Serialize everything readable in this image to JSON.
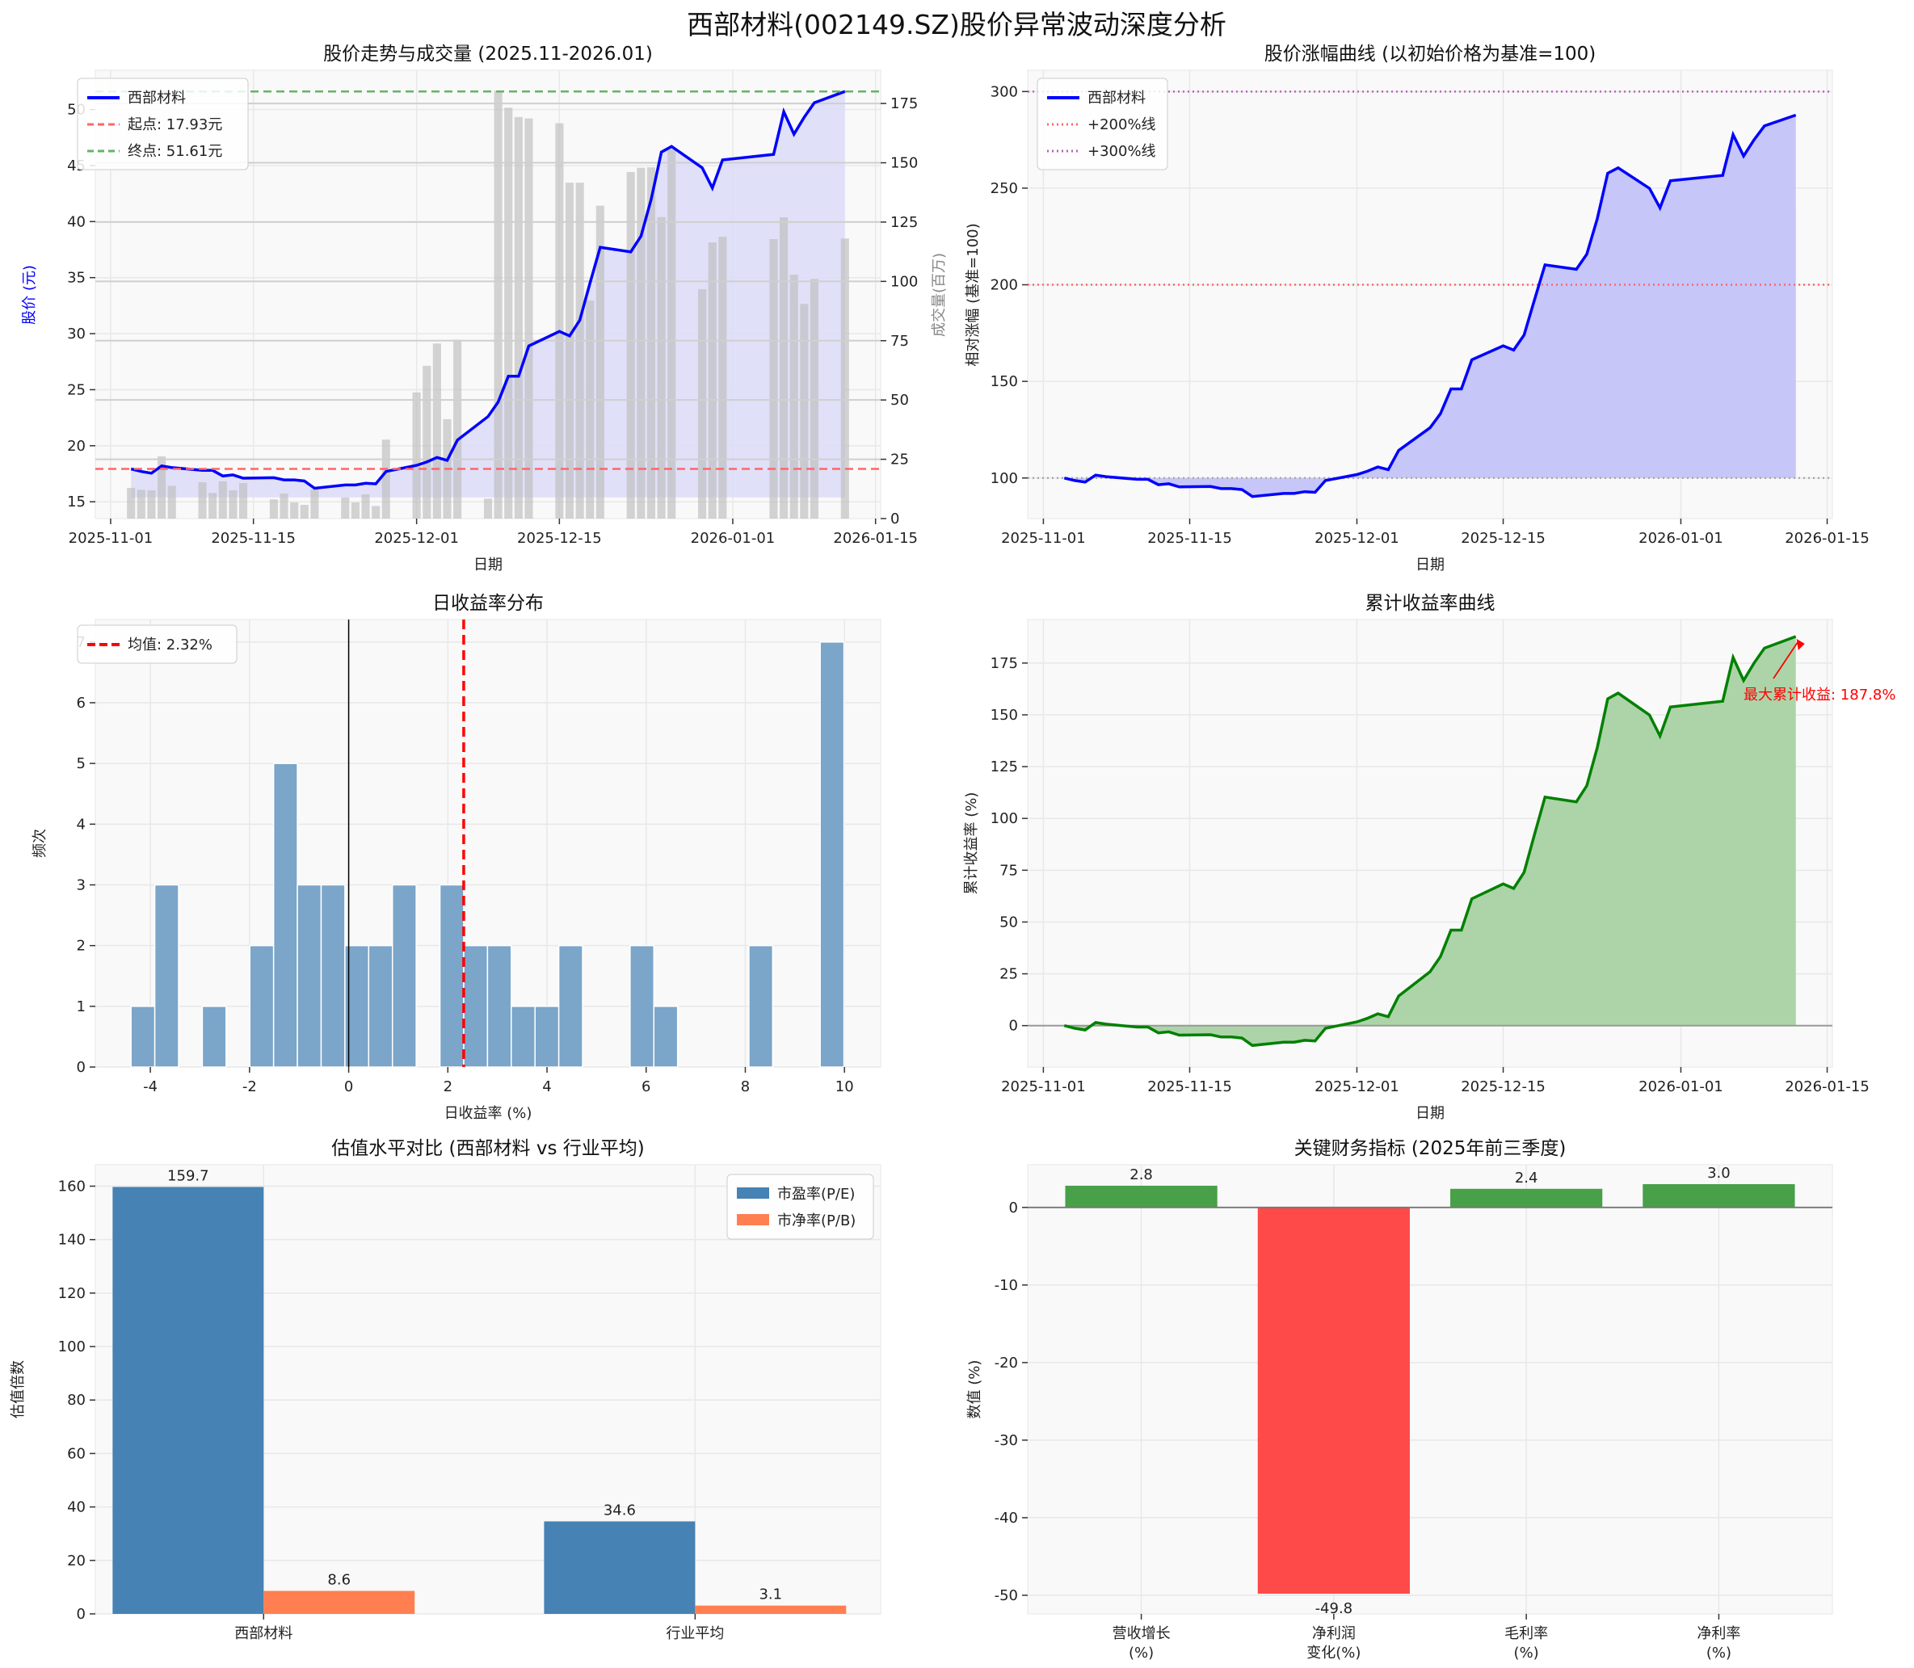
{
  "title": "西部材料(002149.SZ)股价异常波动深度分析",
  "dates": [
    "2025-11-03",
    "2025-11-04",
    "2025-11-05",
    "2025-11-06",
    "2025-11-07",
    "2025-11-10",
    "2025-11-11",
    "2025-11-12",
    "2025-11-13",
    "2025-11-14",
    "2025-11-17",
    "2025-11-18",
    "2025-11-19",
    "2025-11-20",
    "2025-11-21",
    "2025-11-24",
    "2025-11-25",
    "2025-11-26",
    "2025-11-27",
    "2025-11-28",
    "2025-12-01",
    "2025-12-02",
    "2025-12-03",
    "2025-12-04",
    "2025-12-05",
    "2025-12-08",
    "2025-12-09",
    "2025-12-10",
    "2025-12-11",
    "2025-12-12",
    "2025-12-15",
    "2025-12-16",
    "2025-12-17",
    "2025-12-18",
    "2025-12-19",
    "2025-12-22",
    "2025-12-23",
    "2025-12-24",
    "2025-12-25",
    "2025-12-26",
    "2025-12-29",
    "2025-12-30",
    "2025-12-31",
    "2026-01-05",
    "2026-01-06",
    "2026-01-07",
    "2026-01-08",
    "2026-01-09",
    "2026-01-12"
  ],
  "date_ticks": [
    "2025-11-01",
    "2025-11-15",
    "2025-12-01",
    "2025-12-15",
    "2026-01-01",
    "2026-01-15"
  ],
  "chart_data": [
    {
      "type": "line",
      "title": "股价走势与成交量 (2025.11-2026.01)",
      "xlabel": "日期",
      "ylabel": "股价 (元)",
      "y2label": "成交量(百万)",
      "ylim": [
        13.5,
        53.5
      ],
      "y2lim": [
        0,
        189
      ],
      "yticks": [
        15,
        20,
        25,
        30,
        35,
        40,
        45,
        50
      ],
      "y2ticks": [
        0,
        25,
        50,
        75,
        100,
        125,
        150,
        175
      ],
      "grid": true,
      "legend_position": "top-left",
      "price": [
        17.93,
        17.7,
        17.55,
        18.2,
        18.05,
        17.8,
        17.8,
        17.3,
        17.4,
        17.1,
        17.15,
        16.95,
        16.95,
        16.85,
        16.2,
        16.5,
        16.5,
        16.65,
        16.6,
        17.7,
        18.25,
        18.55,
        18.95,
        18.7,
        20.5,
        22.6,
        23.9,
        26.2,
        26.2,
        28.9,
        30.2,
        29.8,
        31.2,
        34.5,
        37.7,
        37.3,
        38.7,
        42.0,
        46.2,
        46.7,
        44.8,
        43.0,
        45.5,
        46.0,
        49.8,
        47.8,
        49.3,
        50.6,
        51.61
      ],
      "volume": [
        12.9,
        12.1,
        11.9,
        26.2,
        13.8,
        15.3,
        10.8,
        15.7,
        11.9,
        15.0,
        8.1,
        10.5,
        6.8,
        5.8,
        12.3,
        8.9,
        6.8,
        10.2,
        5.3,
        33.3,
        53.2,
        64.4,
        73.8,
        41.9,
        75.4,
        8.4,
        180.4,
        173.2,
        169.3,
        168.7,
        166.7,
        141.6,
        141.6,
        91.9,
        131.9,
        146.1,
        147.9,
        148.1,
        127.1,
        155.6,
        96.7,
        116.4,
        118.8,
        117.8,
        127.0,
        102.8,
        90.5,
        101.0,
        118.1
      ],
      "start_price": 17.93,
      "end_price": 51.61,
      "legend": [
        "西部材料",
        "起点: 17.93元",
        "终点: 51.61元"
      ],
      "colors": {
        "line": "#0000ff",
        "fill": "#dcdcf8",
        "volume": "#bdbdbd",
        "start": "#ff6666",
        "end": "#66b366"
      }
    },
    {
      "type": "area",
      "title": "股价涨幅曲线 (以初始价格为基准=100)",
      "xlabel": "日期",
      "ylabel": "相对涨幅 (基准=100)",
      "ylim": [
        79,
        311
      ],
      "yticks": [
        100,
        150,
        200,
        250,
        300
      ],
      "grid": true,
      "legend_position": "top-left",
      "values": [
        100,
        98.7,
        97.9,
        101.5,
        100.7,
        99.3,
        99.3,
        96.5,
        97.0,
        95.4,
        95.6,
        94.5,
        94.5,
        94.0,
        90.4,
        92.0,
        92.0,
        92.9,
        92.6,
        98.7,
        101.8,
        103.5,
        105.7,
        104.3,
        114.3,
        126.0,
        133.3,
        146.1,
        146.1,
        161.2,
        168.4,
        166.2,
        174.0,
        192.4,
        210.3,
        208.0,
        215.8,
        234.2,
        257.7,
        260.5,
        249.9,
        239.8,
        253.8,
        256.6,
        277.7,
        266.6,
        275.0,
        282.2,
        287.8
      ],
      "reference_lines": [
        100,
        200,
        300
      ],
      "legend": [
        "西部材料",
        "+200%线",
        "+300%线"
      ],
      "colors": {
        "line": "#0000ff",
        "fill": "#c6c6f8",
        "base": "#aaaaaa",
        "l200": "#ff6666",
        "l300": "#b366b3"
      }
    },
    {
      "type": "bar",
      "title": "日收益率分布",
      "xlabel": "日收益率 (%)",
      "ylabel": "频次",
      "xlim": [
        -5.11,
        10.73
      ],
      "ylim": [
        0,
        7.37
      ],
      "xticks": [
        -4,
        -2,
        0,
        2,
        4,
        6,
        8,
        10
      ],
      "yticks": [
        0,
        1,
        2,
        3,
        4,
        5,
        6,
        7
      ],
      "bin_range": [
        -4.39,
        9.99
      ],
      "counts": [
        1,
        3,
        0,
        1,
        0,
        2,
        5,
        3,
        3,
        2,
        2,
        3,
        0,
        3,
        2,
        2,
        1,
        1,
        2,
        0,
        0,
        2,
        1,
        0,
        0,
        0,
        2,
        0,
        0,
        7
      ],
      "mean": 2.32,
      "legend": [
        "均值: 2.32%"
      ],
      "grid": true,
      "legend_position": "top-left",
      "colors": {
        "bar": "#7ba5c9",
        "mean": "#ff0000",
        "zero": "#000000"
      }
    },
    {
      "type": "area",
      "title": "累计收益率曲线",
      "xlabel": "日期",
      "ylabel": "累计收益率 (%)",
      "ylim": [
        -20,
        196
      ],
      "yticks": [
        0,
        25,
        50,
        75,
        100,
        125,
        150,
        175
      ],
      "grid": true,
      "values": [
        0,
        -1.3,
        -2.1,
        1.5,
        0.7,
        -0.7,
        -0.7,
        -3.5,
        -3.0,
        -4.6,
        -4.4,
        -5.5,
        -5.5,
        -6.0,
        -9.6,
        -8.0,
        -8.0,
        -7.1,
        -7.4,
        -1.3,
        1.8,
        3.5,
        5.7,
        4.3,
        14.3,
        26.0,
        33.3,
        46.1,
        46.1,
        61.2,
        68.4,
        66.2,
        74.0,
        92.4,
        110.3,
        108.0,
        115.8,
        134.2,
        157.7,
        160.5,
        149.9,
        139.8,
        153.8,
        156.6,
        177.7,
        166.6,
        175.0,
        182.2,
        187.8
      ],
      "annotation": "最大累计收益: 187.8%",
      "colors": {
        "line": "#008000",
        "fill": "#acd4a8",
        "annotation": "#ff0000"
      }
    },
    {
      "type": "bar",
      "title": "估值水平对比 (西部材料 vs 行业平均)",
      "ylabel": "估值倍数",
      "xlim": [
        -0.39,
        1.43
      ],
      "ylim": [
        0,
        168
      ],
      "yticks": [
        0,
        20,
        40,
        60,
        80,
        100,
        120,
        140,
        160
      ],
      "categories": [
        "西部材料",
        "行业平均"
      ],
      "series": [
        {
          "name": "市盈率(P/E)",
          "values": [
            159.7,
            34.6
          ],
          "labels": [
            "159.7",
            "34.6"
          ],
          "color": "#4682b4"
        },
        {
          "name": "市净率(P/B)",
          "values": [
            8.6,
            3.1
          ],
          "labels": [
            "8.6",
            "3.1"
          ],
          "color": "#ff7f50"
        }
      ],
      "grid": true,
      "legend_position": "top-right"
    },
    {
      "type": "bar",
      "title": "关键财务指标 (2025年前三季度)",
      "ylabel": "数值 (%)",
      "xlim": [
        -0.59,
        3.59
      ],
      "ylim": [
        -52.4,
        5.5
      ],
      "yticks": [
        -50,
        -40,
        -30,
        -20,
        -10,
        0
      ],
      "categories": [
        [
          "营收增长",
          "(%)"
        ],
        [
          "净利润",
          "变化(%)"
        ],
        [
          "毛利率",
          "(%)"
        ],
        [
          "净利率",
          "(%)"
        ]
      ],
      "values": [
        2.8,
        -49.8,
        2.4,
        3.0
      ],
      "labels": [
        "2.8",
        "-49.8",
        "2.4",
        "3.0"
      ],
      "grid": true,
      "colors": {
        "positive": "#48a048",
        "negative": "#ff4a4a"
      }
    }
  ]
}
